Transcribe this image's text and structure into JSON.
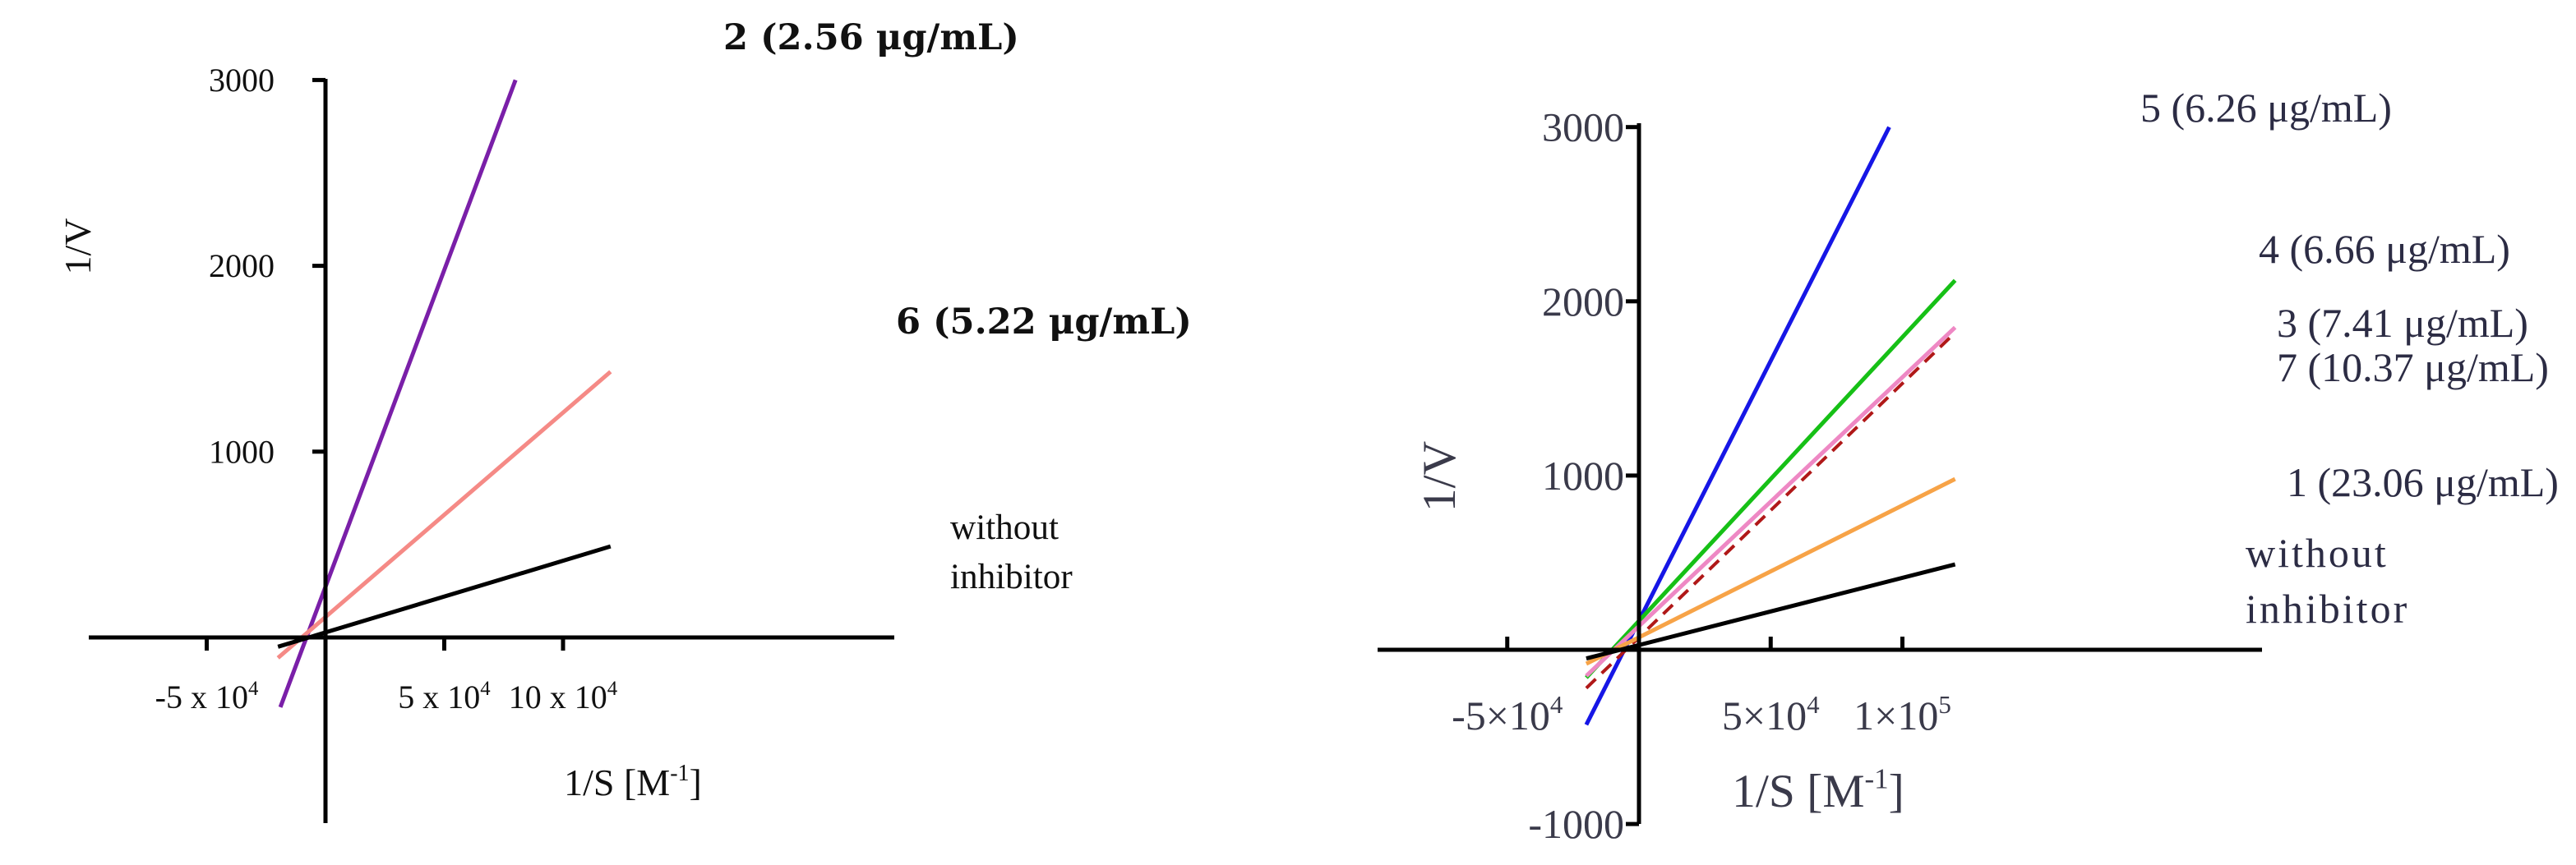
{
  "chart_data": [
    {
      "type": "line",
      "xlabel": "1/S [M",
      "xlabel_sup": "-1",
      "xlabel_end": "]",
      "ylabel": "1/V",
      "xlim": [
        -50000,
        120000
      ],
      "ylim": [
        -1000,
        3000
      ],
      "x_ticks": [
        {
          "value": -50000,
          "label": "-5 x 10",
          "sup": "4"
        },
        {
          "value": 50000,
          "label": "5 x 10",
          "sup": "4"
        },
        {
          "value": 100000,
          "label": "10 x 10",
          "sup": "4"
        }
      ],
      "y_ticks": [
        {
          "value": 1000,
          "label": "1000"
        },
        {
          "value": 2000,
          "label": "2000"
        },
        {
          "value": 3000,
          "label": "3000"
        }
      ],
      "series": [
        {
          "name": "2 (2.56 μg/mL)",
          "color": "#7a1fa8",
          "x": [
            -19000,
            80000
          ],
          "y": [
            -375,
            3000
          ]
        },
        {
          "name": "6 (5.22 μg/mL)",
          "color": "#f58a86",
          "x": [
            -20000,
            120000
          ],
          "y": [
            -110,
            1430
          ]
        },
        {
          "name": "without inhibitor",
          "label_lines": [
            "without",
            "inhibitor"
          ],
          "color": "#000000",
          "x": [
            -20000,
            120000
          ],
          "y": [
            -50,
            490
          ]
        }
      ]
    },
    {
      "type": "line",
      "xlabel": "1/S [M",
      "xlabel_sup": "-1",
      "xlabel_end": "]",
      "ylabel": "1/V",
      "xlim": [
        -50000,
        120000
      ],
      "ylim": [
        -1000,
        3000
      ],
      "x_ticks": [
        {
          "value": -50000,
          "label": "-5×10",
          "sup": "4"
        },
        {
          "value": 50000,
          "label": "5×10",
          "sup": "4"
        },
        {
          "value": 100000,
          "label": "1×10",
          "sup": "5"
        }
      ],
      "y_ticks": [
        {
          "value": -1000,
          "label": "-1000"
        },
        {
          "value": 1000,
          "label": "1000"
        },
        {
          "value": 2000,
          "label": "2000"
        },
        {
          "value": 3000,
          "label": "3000"
        }
      ],
      "series": [
        {
          "name": "5 (6.26 μg/mL)",
          "color": "#1616e6",
          "x": [
            -20000,
            95000
          ],
          "y": [
            -430,
            3000
          ]
        },
        {
          "name": "4 (6.66 μg/mL)",
          "color": "#16c016",
          "x": [
            -20000,
            120000
          ],
          "y": [
            -160,
            2120
          ]
        },
        {
          "name": "3 (7.41 μg/mL)",
          "color": "#ee88c4",
          "x": [
            -20000,
            120000
          ],
          "y": [
            -150,
            1850
          ]
        },
        {
          "name": "7 (10.37 μg/mL)",
          "color": "#b01818",
          "dashed": true,
          "x": [
            -20000,
            120000
          ],
          "y": [
            -220,
            1820
          ]
        },
        {
          "name": "1 (23.06 μg/mL)",
          "color": "#f7a347",
          "x": [
            -20000,
            120000
          ],
          "y": [
            -80,
            980
          ]
        },
        {
          "name": "without inhibitor",
          "label_lines": [
            "without",
            "inhibitor"
          ],
          "color": "#000000",
          "x": [
            -20000,
            120000
          ],
          "y": [
            -50,
            490
          ]
        }
      ]
    }
  ]
}
